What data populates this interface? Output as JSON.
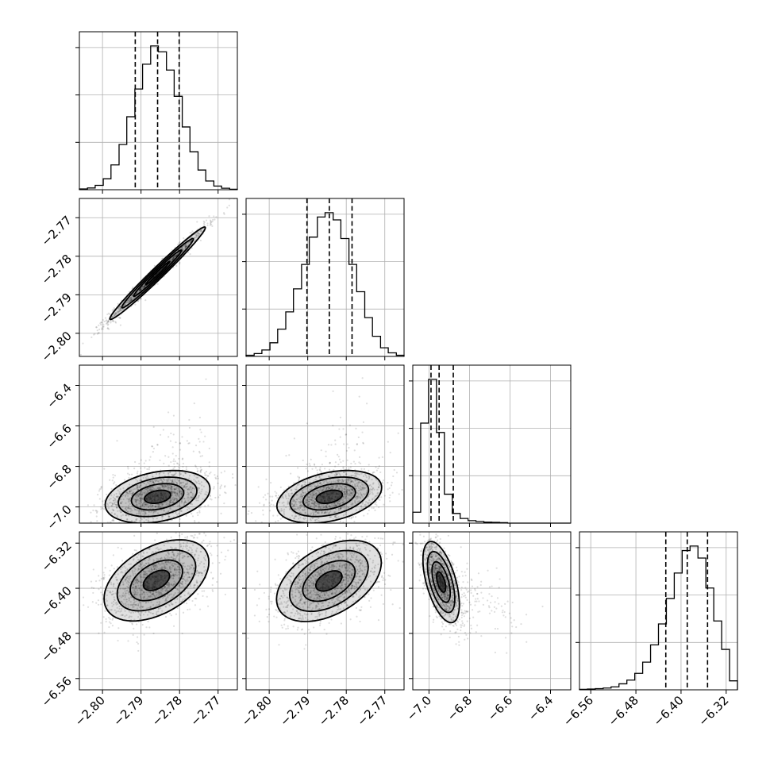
{
  "chart_data": {
    "type": "corner",
    "grid": true,
    "parameters": [
      {
        "index": 0,
        "ticks": [
          -2.8,
          -2.79,
          -2.78,
          -2.77
        ],
        "tick_labels": [
          "−2.80",
          "−2.79",
          "−2.78",
          "−2.77"
        ],
        "range": [
          -2.806,
          -2.765
        ]
      },
      {
        "index": 1,
        "ticks": [
          -2.8,
          -2.79,
          -2.78,
          -2.77
        ],
        "tick_labels": [
          "−2.80",
          "−2.79",
          "−2.78",
          "−2.77"
        ],
        "range": [
          -2.806,
          -2.765
        ]
      },
      {
        "index": 2,
        "ticks": [
          -7.0,
          -6.8,
          -6.6,
          -6.4
        ],
        "tick_labels": [
          "−7.0",
          "−6.8",
          "−6.6",
          "−6.4"
        ],
        "range": [
          -7.08,
          -6.3
        ]
      },
      {
        "index": 3,
        "ticks": [
          -6.56,
          -6.48,
          -6.4,
          -6.32
        ],
        "tick_labels": [
          "−6.56",
          "−6.48",
          "−6.40",
          "−6.32"
        ],
        "range": [
          -6.58,
          -6.3
        ]
      }
    ],
    "quantiles": [
      [
        -2.7915,
        -2.7857,
        -2.7801
      ],
      [
        -2.7902,
        -2.7844,
        -2.7785
      ],
      [
        -6.99,
        -6.95,
        -6.88
      ],
      [
        -6.427,
        -6.389,
        -6.353
      ]
    ],
    "histograms": [
      {
        "param": 0,
        "edges": [
          -2.806,
          -2.8039,
          -2.8019,
          -2.7998,
          -2.7978,
          -2.7957,
          -2.7937,
          -2.7916,
          -2.7896,
          -2.7875,
          -2.7855,
          -2.7834,
          -2.7814,
          -2.7793,
          -2.7773,
          -2.7752,
          -2.7732,
          -2.7711,
          -2.7691,
          -2.767,
          -2.765
        ],
        "counts": [
          5,
          12,
          30,
          75,
          170,
          310,
          500,
          690,
          860,
          985,
          945,
          820,
          640,
          430,
          260,
          135,
          60,
          25,
          10,
          3
        ]
      },
      {
        "param": 1,
        "edges": [
          -2.806,
          -2.8039,
          -2.8019,
          -2.7998,
          -2.7978,
          -2.7957,
          -2.7937,
          -2.7916,
          -2.7896,
          -2.7875,
          -2.7855,
          -2.7834,
          -2.7814,
          -2.7793,
          -2.7773,
          -2.7752,
          -2.7732,
          -2.7711,
          -2.7691,
          -2.767,
          -2.765
        ],
        "counts": [
          8,
          20,
          45,
          95,
          190,
          310,
          470,
          640,
          830,
          970,
          1000,
          950,
          820,
          640,
          450,
          270,
          140,
          60,
          25,
          8
        ]
      },
      {
        "param": 2,
        "edges": [
          -7.08,
          -7.041,
          -7.002,
          -6.963,
          -6.924,
          -6.885,
          -6.846,
          -6.807,
          -6.768,
          -6.729,
          -6.69,
          -6.651,
          -6.612,
          -6.573,
          -6.534,
          -6.495,
          -6.456,
          -6.417,
          -6.378,
          -6.339,
          -6.3
        ],
        "counts": [
          70,
          640,
          920,
          580,
          185,
          62,
          30,
          16,
          10,
          6,
          5,
          3,
          0,
          0,
          0,
          0,
          0,
          0,
          0,
          0
        ]
      },
      {
        "param": 3,
        "edges": [
          -6.58,
          -6.566,
          -6.552,
          -6.538,
          -6.524,
          -6.51,
          -6.496,
          -6.482,
          -6.468,
          -6.454,
          -6.44,
          -6.426,
          -6.412,
          -6.398,
          -6.384,
          -6.37,
          -6.356,
          -6.342,
          -6.328,
          -6.314,
          -6.3
        ],
        "counts": [
          3,
          5,
          8,
          12,
          20,
          40,
          65,
          110,
          185,
          300,
          440,
          610,
          780,
          930,
          960,
          880,
          680,
          460,
          270,
          60
        ]
      }
    ],
    "pairs": [
      {
        "x": 0,
        "y": 1,
        "center": [
          -2.7857,
          -2.7844
        ],
        "sx": 0.0062,
        "sy": 0.006,
        "rho": 0.985
      },
      {
        "x": 0,
        "y": 2,
        "center": [
          -2.7857,
          -6.95
        ],
        "sx": 0.0068,
        "sy": 0.065,
        "rho": 0.3
      },
      {
        "x": 1,
        "y": 2,
        "center": [
          -2.7844,
          -6.95
        ],
        "sx": 0.0068,
        "sy": 0.065,
        "rho": 0.35
      },
      {
        "x": 0,
        "y": 3,
        "center": [
          -2.786,
          -6.386
        ],
        "sx": 0.0068,
        "sy": 0.036,
        "rho": 0.45
      },
      {
        "x": 1,
        "y": 3,
        "center": [
          -2.7845,
          -6.387
        ],
        "sx": 0.0068,
        "sy": 0.036,
        "rho": 0.45
      },
      {
        "x": 2,
        "y": 3,
        "center": [
          -6.94,
          -6.389
        ],
        "sx": 0.045,
        "sy": 0.036,
        "rho": -0.55
      }
    ],
    "colors": {
      "contour": "#000000",
      "scatter": "#000000",
      "grid": "#b0b0b0",
      "frame": "#000000"
    }
  }
}
